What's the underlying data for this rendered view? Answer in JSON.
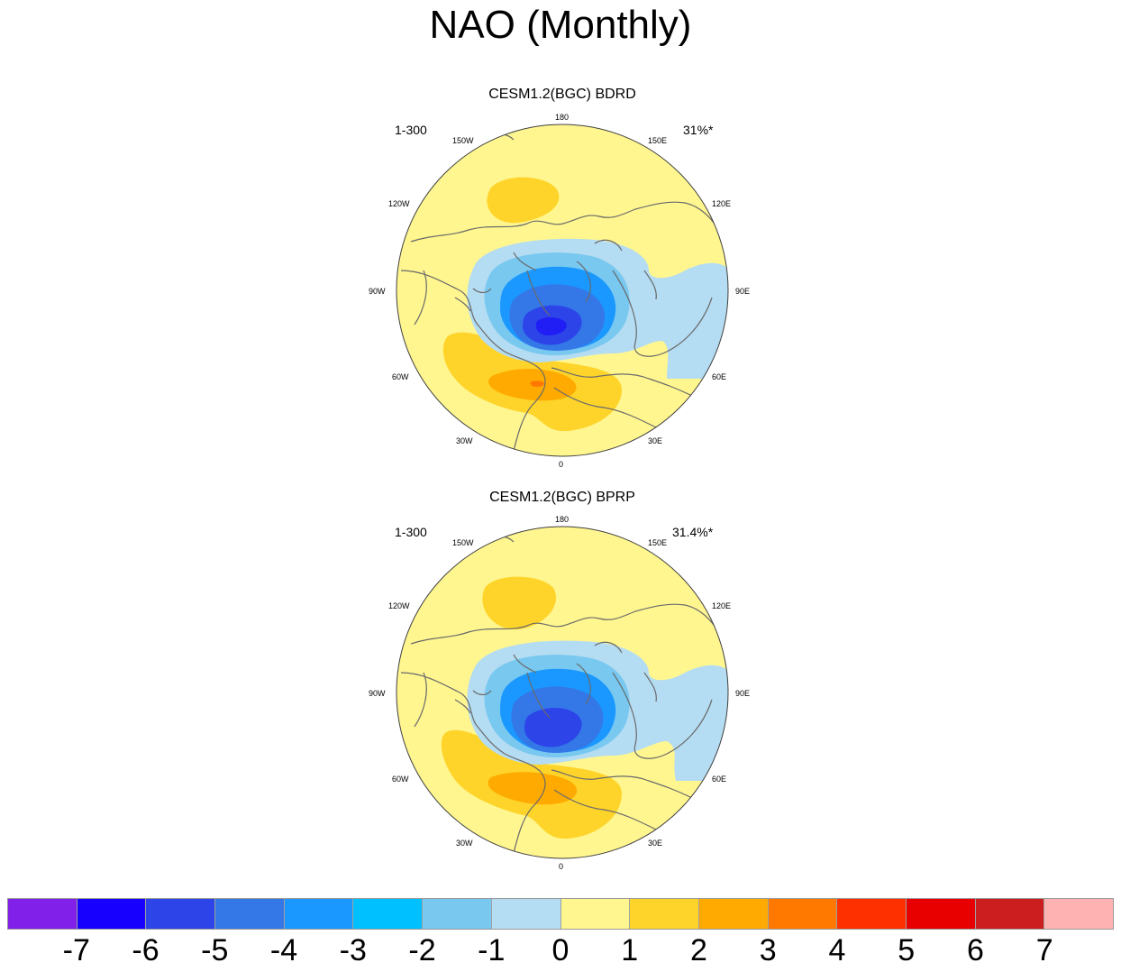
{
  "title": "NAO (Monthly)",
  "panels": [
    {
      "title": "CESM1.2(BGC) BDRD",
      "period": "1-300",
      "variance": "31%*",
      "lon_labels": [
        "180",
        "150E",
        "120E",
        "90E",
        "60E",
        "30E",
        "0",
        "30W",
        "60W",
        "90W",
        "120W",
        "150W"
      ]
    },
    {
      "title": "CESM1.2(BGC) BPRP",
      "period": "1-300",
      "variance": "31.4%*",
      "lon_labels": [
        "180",
        "150E",
        "120E",
        "90E",
        "60E",
        "30E",
        "0",
        "30W",
        "60W",
        "90W",
        "120W",
        "150W"
      ]
    }
  ],
  "colorbar": {
    "colors": [
      "#8020e8",
      "#1800ff",
      "#2c44e8",
      "#3478e8",
      "#1a98ff",
      "#00c0ff",
      "#78c8f0",
      "#b4dcf2",
      "#fff690",
      "#ffd42a",
      "#ffaa00",
      "#ff7800",
      "#ff3000",
      "#e80000",
      "#cc1e1e",
      "#ffb2b2"
    ],
    "labels": [
      "-7",
      "-6",
      "-5",
      "-4",
      "-3",
      "-2",
      "-1",
      "0",
      "1",
      "2",
      "3",
      "4",
      "5",
      "6",
      "7"
    ]
  },
  "colors": {
    "land_outline": "#6a6a6a",
    "frame": "#404040"
  }
}
